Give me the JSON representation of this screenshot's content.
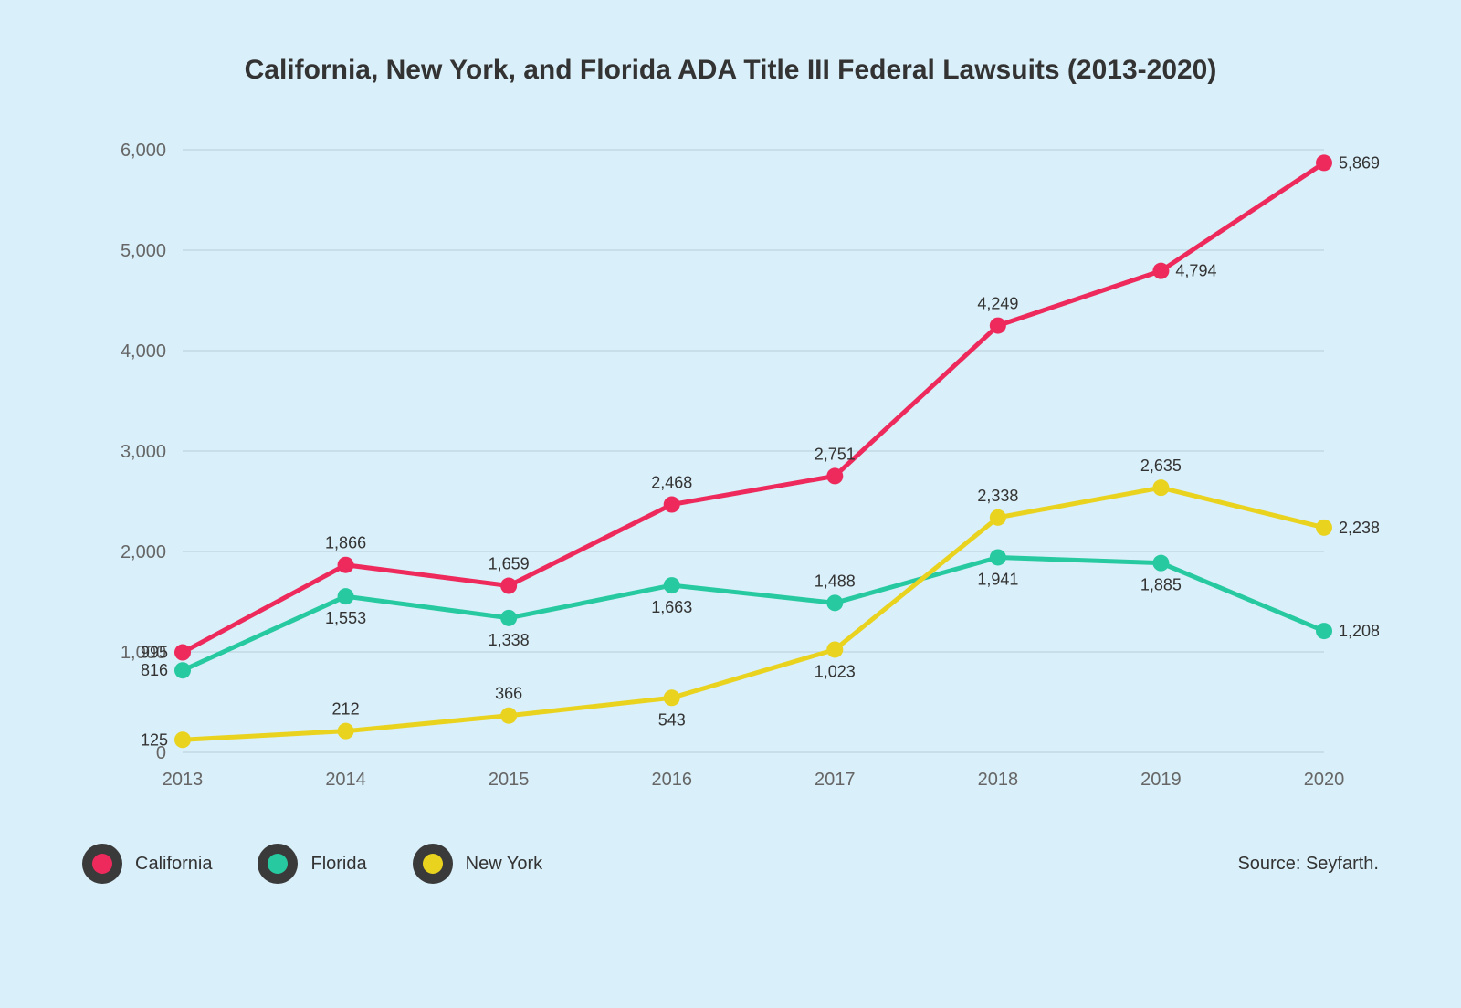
{
  "chart": {
    "type": "line",
    "title": "California, New York, and Florida ADA Title III Federal Lawsuits (2013-2020)",
    "background_color": "#d9eff9",
    "grid_color": "#b8cdd6",
    "title_color": "#333333",
    "title_fontsize": 30,
    "axis_label_color": "#666666",
    "axis_label_fontsize": 20,
    "data_label_color": "#333333",
    "data_label_fontsize": 18,
    "line_width": 5,
    "marker_radius": 9,
    "x": {
      "categories": [
        "2013",
        "2014",
        "2015",
        "2016",
        "2017",
        "2018",
        "2019",
        "2020"
      ]
    },
    "y": {
      "min": 0,
      "max": 6000,
      "tick_step": 1000,
      "tick_labels": [
        "0",
        "1,000",
        "2,000",
        "3,000",
        "4,000",
        "5,000",
        "6,000"
      ]
    },
    "series": [
      {
        "name": "California",
        "color": "#ed2a5b",
        "values": [
          995,
          1866,
          1659,
          2468,
          2751,
          4249,
          4794,
          5869
        ],
        "labels": [
          "995",
          "1,866",
          "1,659",
          "2,468",
          "2,751",
          "4,249",
          "4,794",
          "5,869"
        ],
        "label_pos": [
          "left",
          "above",
          "above",
          "above",
          "above",
          "above",
          "right",
          "right"
        ]
      },
      {
        "name": "Florida",
        "color": "#26c9a0",
        "values": [
          816,
          1553,
          1338,
          1663,
          1488,
          1941,
          1885,
          1208
        ],
        "labels": [
          "816",
          "1,553",
          "1,338",
          "1,663",
          "1,488",
          "1,941",
          "1,885",
          "1,208"
        ],
        "label_pos": [
          "left",
          "below",
          "below",
          "below",
          "above",
          "below",
          "below",
          "right"
        ]
      },
      {
        "name": "New York",
        "color": "#e9d31f",
        "values": [
          125,
          212,
          366,
          543,
          1023,
          2338,
          2635,
          2238
        ],
        "labels": [
          "125",
          "212",
          "366",
          "543",
          "1,023",
          "2,338",
          "2,635",
          "2,238"
        ],
        "label_pos": [
          "left",
          "above",
          "above",
          "below",
          "below",
          "above",
          "above",
          "right"
        ]
      }
    ],
    "legend": {
      "swatch_bg": "#3a3a3a",
      "items": [
        {
          "label": "California",
          "color": "#ed2a5b"
        },
        {
          "label": "Florida",
          "color": "#26c9a0"
        },
        {
          "label": "New York",
          "color": "#e9d31f"
        }
      ]
    },
    "source": "Source: Seyfarth."
  }
}
